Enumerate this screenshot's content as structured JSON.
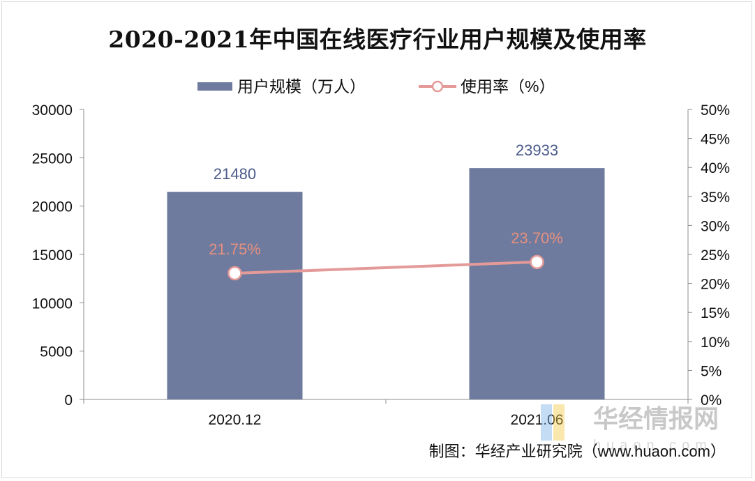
{
  "chart_data": {
    "type": "bar",
    "title": "2020-2021年中国在线医疗行业用户规模及使用率",
    "categories": [
      "2020.12",
      "2021.06"
    ],
    "series": [
      {
        "name": "用户规模（万人）",
        "type": "bar",
        "axis": "left",
        "values": [
          21480,
          23933
        ],
        "labels": [
          "21480",
          "23933"
        ],
        "color": "#6e7b9e",
        "label_color": "#4a5a8a"
      },
      {
        "name": "使用率（%）",
        "type": "line",
        "axis": "right",
        "values": [
          21.75,
          23.7
        ],
        "labels": [
          "21.75%",
          "23.70%"
        ],
        "color": "#e39a98",
        "label_color": "#e6907f"
      }
    ],
    "y_left": {
      "min": 0,
      "max": 30000,
      "ticks": [
        "0",
        "5000",
        "10000",
        "15000",
        "20000",
        "25000",
        "30000"
      ]
    },
    "y_right": {
      "min": 0,
      "max": 50,
      "ticks": [
        "0%",
        "5%",
        "10%",
        "15%",
        "20%",
        "25%",
        "30%",
        "35%",
        "40%",
        "45%",
        "50%"
      ]
    },
    "grid": false,
    "legend_position": "top-center"
  },
  "source": "制图：华经产业研究院（www.huaon.com）",
  "watermark": {
    "text": "华经情报网",
    "subtext": "huaon.com",
    "colors": [
      "#7fb3e6",
      "#f2c94c"
    ]
  }
}
